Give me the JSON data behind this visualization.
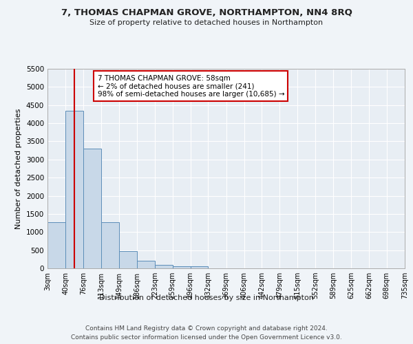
{
  "title": "7, THOMAS CHAPMAN GROVE, NORTHAMPTON, NN4 8RQ",
  "subtitle": "Size of property relative to detached houses in Northampton",
  "xlabel": "Distribution of detached houses by size in Northampton",
  "ylabel": "Number of detached properties",
  "footer_line1": "Contains HM Land Registry data © Crown copyright and database right 2024.",
  "footer_line2": "Contains public sector information licensed under the Open Government Licence v3.0.",
  "annotation_line1": "7 THOMAS CHAPMAN GROVE: 58sqm",
  "annotation_line2": "← 2% of detached houses are smaller (241)",
  "annotation_line3": "98% of semi-detached houses are larger (10,685) →",
  "property_size": 58,
  "bar_color": "#c8d8e8",
  "bar_edge_color": "#5b8db8",
  "vline_color": "#cc0000",
  "bg_color": "#e8eef4",
  "grid_color": "#ffffff",
  "fig_bg_color": "#f0f4f8",
  "bin_edges": [
    3,
    40,
    76,
    113,
    149,
    186,
    223,
    259,
    296,
    332,
    369,
    406,
    442,
    479,
    515,
    552,
    589,
    625,
    662,
    698,
    735
  ],
  "bin_labels": [
    "3sqm",
    "40sqm",
    "76sqm",
    "113sqm",
    "149sqm",
    "186sqm",
    "223sqm",
    "259sqm",
    "296sqm",
    "332sqm",
    "369sqm",
    "406sqm",
    "442sqm",
    "479sqm",
    "515sqm",
    "552sqm",
    "589sqm",
    "625sqm",
    "662sqm",
    "698sqm",
    "735sqm"
  ],
  "bar_heights": [
    1270,
    4340,
    3300,
    1270,
    480,
    215,
    90,
    65,
    55,
    0,
    0,
    0,
    0,
    0,
    0,
    0,
    0,
    0,
    0,
    0
  ],
  "ylim": [
    0,
    5500
  ],
  "yticks": [
    0,
    500,
    1000,
    1500,
    2000,
    2500,
    3000,
    3500,
    4000,
    4500,
    5000,
    5500
  ]
}
